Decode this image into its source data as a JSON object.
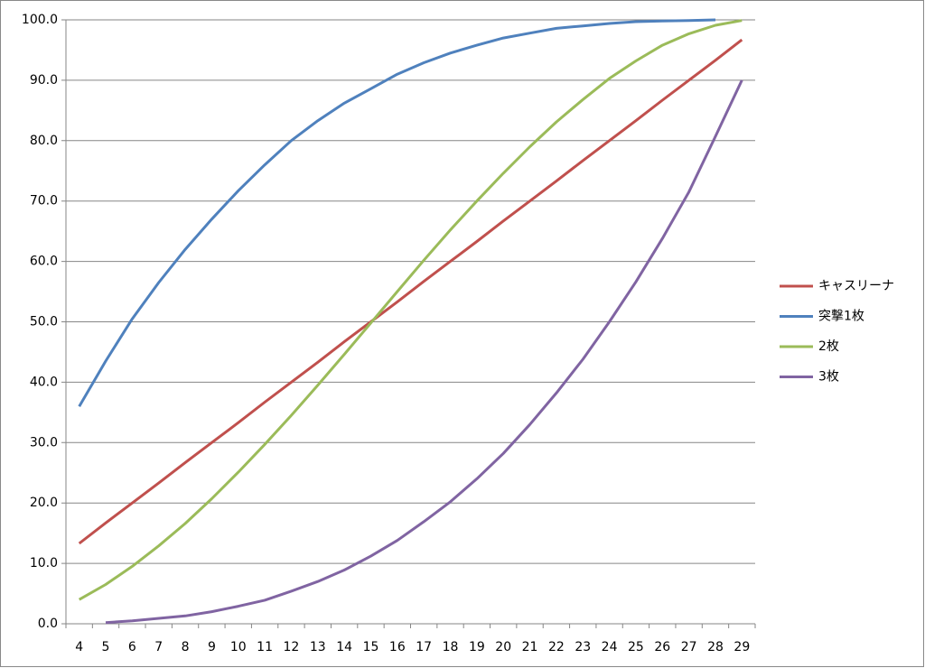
{
  "chart_data": {
    "type": "line",
    "categories": [
      "4",
      "5",
      "6",
      "7",
      "8",
      "9",
      "10",
      "11",
      "12",
      "13",
      "14",
      "15",
      "16",
      "17",
      "18",
      "19",
      "20",
      "21",
      "22",
      "23",
      "24",
      "25",
      "26",
      "27",
      "28",
      "29"
    ],
    "series": [
      {
        "name": "キャスリーナ",
        "color": "#c0504d",
        "values": [
          13.3,
          16.7,
          20,
          23.3,
          26.7,
          30,
          33.3,
          36.7,
          40,
          43.3,
          46.7,
          50,
          53.3,
          56.7,
          60,
          63.3,
          66.7,
          70,
          73.3,
          76.7,
          80,
          83.3,
          86.7,
          90,
          93.3,
          96.7
        ]
      },
      {
        "name": "突撃1枚",
        "color": "#4f81bd",
        "values": [
          36,
          43.5,
          50.5,
          56.5,
          62,
          67,
          71.7,
          76,
          80,
          83.3,
          86.2,
          88.6,
          91,
          92.9,
          94.5,
          95.8,
          97,
          97.8,
          98.6,
          99,
          99.4,
          99.7,
          99.8,
          99.9,
          100,
          null
        ]
      },
      {
        "name": "2枚",
        "color": "#9bbb59",
        "values": [
          4,
          6.5,
          9.5,
          12.9,
          16.6,
          20.7,
          25.1,
          29.7,
          34.5,
          39.5,
          44.6,
          49.8,
          55,
          60.2,
          65.2,
          70,
          74.6,
          79,
          83.1,
          86.8,
          90.3,
          93.2,
          95.8,
          97.7,
          99.1,
          99.9
        ]
      },
      {
        "name": "3枚",
        "color": "#8064a2",
        "values": [
          null,
          0.2,
          0.5,
          0.9,
          1.3,
          2,
          2.9,
          3.9,
          5.4,
          7,
          8.9,
          11.2,
          13.8,
          16.9,
          20.2,
          24,
          28.2,
          33,
          38.2,
          43.8,
          50,
          56.6,
          63.8,
          71.5,
          80.7,
          90
        ]
      }
    ],
    "ylim": [
      0,
      100
    ],
    "yticks": [
      {
        "value": 0,
        "label": "0.0"
      },
      {
        "value": 10,
        "label": "10.0"
      },
      {
        "value": 20,
        "label": "20.0"
      },
      {
        "value": 30,
        "label": "30.0"
      },
      {
        "value": 40,
        "label": "40.0"
      },
      {
        "value": 50,
        "label": "50.0"
      },
      {
        "value": 60,
        "label": "60.0"
      },
      {
        "value": 70,
        "label": "70.0"
      },
      {
        "value": 80,
        "label": "80.0"
      },
      {
        "value": 90,
        "label": "90.0"
      },
      {
        "value": 100,
        "label": "100.0"
      }
    ],
    "grid": true,
    "legend": "right"
  }
}
